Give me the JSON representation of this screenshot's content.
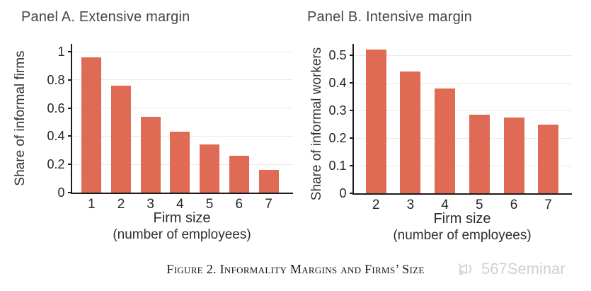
{
  "figure": {
    "caption": "Figure 2. Informality Margins and Firms’ Size"
  },
  "watermark": {
    "label": "567Seminar",
    "icon": "megaphone-icon",
    "color": "#cdd0d6"
  },
  "colors": {
    "bar": "#e06b55",
    "axis": "#1c1c1c",
    "grid": "#f0e9e6",
    "tick_text": "#262626"
  },
  "chart_data": [
    {
      "type": "bar",
      "panel": "A",
      "title": "Panel A. Extensive margin",
      "ylabel": "Share of informal firms",
      "xlabel": "Firm size",
      "xlabel2": "(number of employees)",
      "categories": [
        "1",
        "2",
        "3",
        "4",
        "5",
        "6",
        "7"
      ],
      "values": [
        0.96,
        0.76,
        0.54,
        0.43,
        0.34,
        0.26,
        0.16
      ],
      "yticks": [
        1,
        0.8,
        0.6,
        0.4,
        0.2,
        0
      ],
      "ylim": [
        0,
        1.05
      ],
      "grid": true,
      "legend": false,
      "bar_color": "#e06b55"
    },
    {
      "type": "bar",
      "panel": "B",
      "title": "Panel B. Intensive margin",
      "ylabel": "Share of informal workers",
      "xlabel": "Firm size",
      "xlabel2": "(number of employees)",
      "categories": [
        "2",
        "3",
        "4",
        "5",
        "6",
        "7"
      ],
      "values": [
        0.52,
        0.44,
        0.38,
        0.285,
        0.275,
        0.25
      ],
      "yticks": [
        0.5,
        0.4,
        0.3,
        0.2,
        0.1,
        0
      ],
      "ylim": [
        0,
        0.54
      ],
      "grid": true,
      "legend": false,
      "bar_color": "#e06b55"
    }
  ]
}
